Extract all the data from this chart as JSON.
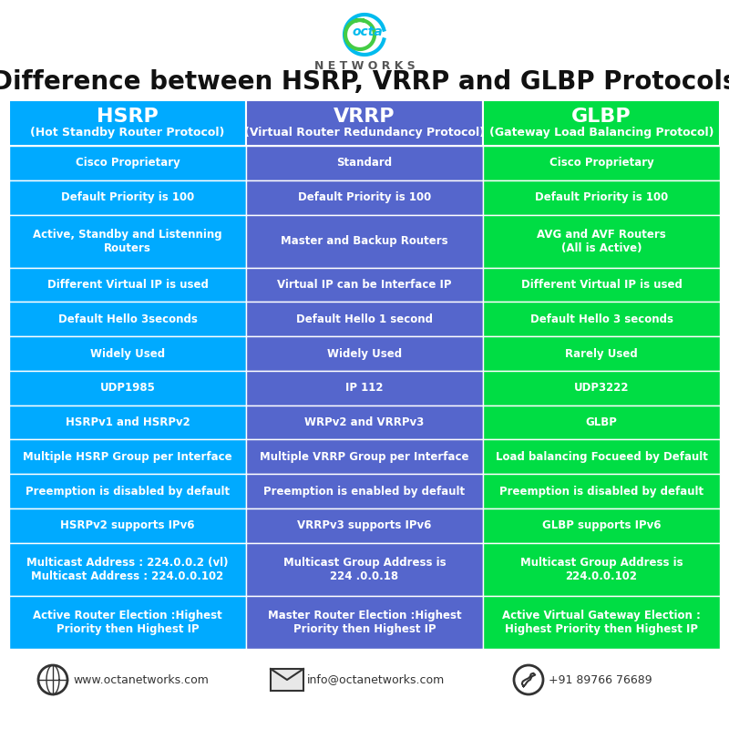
{
  "title": "Difference between HSRP, VRRP and GLBP Protocols",
  "bg_color": "#ffffff",
  "col_colors": [
    "#00aaff",
    "#5566cc",
    "#00dd44"
  ],
  "header_text_color": "#ffffff",
  "cell_text_color": "#ffffff",
  "border_color": "#ffffff",
  "headers": [
    [
      "HSRP",
      "(Hot Standby Router Protocol)"
    ],
    [
      "VRRP",
      "(Virtual Router Redundancy Protocol)"
    ],
    [
      "GLBP",
      "(Gateway Load Balancing Protocol)"
    ]
  ],
  "rows": [
    [
      "Cisco Proprietary",
      "Standard",
      "Cisco Proprietary"
    ],
    [
      "Default Priority is 100",
      "Default Priority is 100",
      "Default Priority is 100"
    ],
    [
      "Active, Standby and Listenning\nRouters",
      "Master and Backup Routers",
      "AVG and AVF Routers\n(All is Active)"
    ],
    [
      "Different Virtual IP is used",
      "Virtual IP can be Interface IP",
      "Different Virtual IP is used"
    ],
    [
      "Default Hello 3seconds",
      "Default Hello 1 second",
      "Default Hello 3 seconds"
    ],
    [
      "Widely Used",
      "Widely Used",
      "Rarely Used"
    ],
    [
      "UDP1985",
      "IP 112",
      "UDP3222"
    ],
    [
      "HSRPv1 and HSRPv2",
      "WRPv2 and VRRPv3",
      "GLBP"
    ],
    [
      "Multiple HSRP Group per Interface",
      "Multiple VRRP Group per Interface",
      "Load balancing Focueed by Default"
    ],
    [
      "Preemption is disabled by default",
      "Preemption is enabled by default",
      "Preemption is disabled by default"
    ],
    [
      "HSRPv2 supports IPv6",
      "VRRPv3 supports IPv6",
      "GLBP supports IPv6"
    ],
    [
      "Multicast Address : 224.0.0.2 (vl)\nMulticast Address : 224.0.0.102",
      "Multicast Group Address is\n224 .0.0.18",
      "Multicast Group Address is\n224.0.0.102"
    ],
    [
      "Active Router Election :Highest\nPriority then Highest IP",
      "Master Router Election :Highest\nPriority then Highest IP",
      "Active Virtual Gateway Election :\nHighest Priority then Highest IP"
    ]
  ],
  "footer": {
    "website": "www.octanetworks.com",
    "email": "info@octanetworks.com",
    "phone": "+91 89766 76689"
  },
  "title_fontsize": 20,
  "header_fontsize": 16,
  "header_sub_fontsize": 9,
  "cell_fontsize": 8.5
}
